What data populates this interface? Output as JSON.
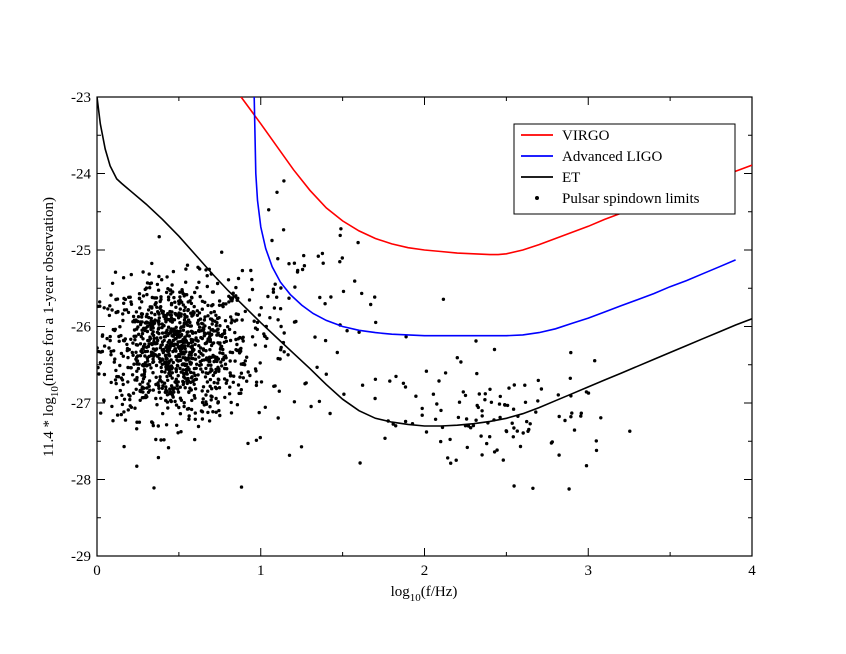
{
  "chart_data": {
    "type": "line+scatter",
    "title": "",
    "xlabel": "log10(f/Hz)",
    "xlabel_parts": {
      "pre": "log",
      "sub": "10",
      "post": "(f/Hz)"
    },
    "ylabel": "11.4 * log10(noise for a 1-year observation)",
    "ylabel_parts": {
      "pre": "11.4 * log",
      "sub": "10",
      "post": "(noise for a 1-year observation)"
    },
    "xlim": [
      0,
      4
    ],
    "ylim": [
      -29,
      -23
    ],
    "xticks": [
      0,
      1,
      2,
      3,
      4
    ],
    "xtick_labels": [
      "0",
      "1",
      "2",
      "3",
      "4"
    ],
    "yticks": [
      -29,
      -28,
      -27,
      -26,
      -25,
      -24,
      -23
    ],
    "ytick_labels": [
      "-29",
      "-28",
      "-27",
      "-26",
      "-25",
      "-24",
      "-23"
    ],
    "legend_position": "top-right",
    "series": [
      {
        "name": "VIRGO",
        "color": "#ff0000",
        "kind": "line",
        "x": [
          0.88,
          1.0,
          1.1,
          1.2,
          1.3,
          1.4,
          1.5,
          1.6,
          1.7,
          1.8,
          1.9,
          2.0,
          2.1,
          2.2,
          2.3,
          2.4,
          2.45,
          2.5,
          2.6,
          2.7,
          2.8,
          2.9,
          3.0,
          3.1,
          3.2,
          3.3,
          3.4,
          3.5,
          3.6,
          3.7,
          3.8,
          3.9,
          4.0
        ],
        "y": [
          -23.0,
          -23.35,
          -23.65,
          -23.95,
          -24.22,
          -24.45,
          -24.62,
          -24.75,
          -24.85,
          -24.92,
          -24.97,
          -25.0,
          -25.02,
          -25.04,
          -25.05,
          -25.06,
          -25.06,
          -25.05,
          -25.0,
          -24.93,
          -24.85,
          -24.77,
          -24.69,
          -24.6,
          -24.52,
          -24.44,
          -24.36,
          -24.28,
          -24.2,
          -24.12,
          -24.04,
          -23.97,
          -23.89
        ]
      },
      {
        "name": "Advanced LIGO",
        "color": "#0000ff",
        "kind": "line",
        "x": [
          0.96,
          0.97,
          0.98,
          1.0,
          1.03,
          1.07,
          1.12,
          1.18,
          1.25,
          1.32,
          1.4,
          1.5,
          1.6,
          1.7,
          1.8,
          1.9,
          2.0,
          2.1,
          2.2,
          2.3,
          2.4,
          2.5,
          2.6,
          2.7,
          2.8,
          2.9,
          3.0,
          3.1,
          3.2,
          3.3,
          3.4,
          3.5,
          3.6,
          3.7,
          3.8,
          3.9
        ],
        "y": [
          -23.0,
          -24.0,
          -24.35,
          -24.7,
          -24.98,
          -25.22,
          -25.42,
          -25.58,
          -25.72,
          -25.83,
          -25.92,
          -26.0,
          -26.05,
          -26.08,
          -26.1,
          -26.11,
          -26.12,
          -26.12,
          -26.12,
          -26.12,
          -26.12,
          -26.12,
          -26.11,
          -26.08,
          -26.03,
          -25.96,
          -25.89,
          -25.81,
          -25.73,
          -25.65,
          -25.57,
          -25.48,
          -25.4,
          -25.31,
          -25.22,
          -25.13
        ]
      },
      {
        "name": "ET",
        "color": "#000000",
        "kind": "line",
        "x": [
          0.0,
          0.02,
          0.05,
          0.08,
          0.12,
          0.15,
          0.2,
          0.3,
          0.4,
          0.5,
          0.6,
          0.7,
          0.8,
          0.9,
          1.0,
          1.1,
          1.2,
          1.3,
          1.4,
          1.5,
          1.6,
          1.7,
          1.8,
          1.9,
          2.0,
          2.1,
          2.2,
          2.3,
          2.4,
          2.5,
          2.6,
          2.7,
          2.8,
          2.9,
          3.0,
          3.1,
          3.2,
          3.3,
          3.4,
          3.5,
          3.6,
          3.7,
          3.8,
          3.9,
          4.0
        ],
        "y": [
          -23.0,
          -23.35,
          -23.68,
          -23.9,
          -24.07,
          -24.13,
          -24.22,
          -24.4,
          -24.6,
          -24.82,
          -25.06,
          -25.3,
          -25.53,
          -25.74,
          -25.95,
          -26.15,
          -26.35,
          -26.55,
          -26.76,
          -26.95,
          -27.1,
          -27.2,
          -27.25,
          -27.28,
          -27.3,
          -27.3,
          -27.29,
          -27.27,
          -27.24,
          -27.2,
          -27.14,
          -27.06,
          -26.97,
          -26.88,
          -26.79,
          -26.7,
          -26.61,
          -26.52,
          -26.43,
          -26.34,
          -26.25,
          -26.16,
          -26.07,
          -25.98,
          -25.9
        ]
      },
      {
        "name": "Pulsar spindown limits",
        "color": "#000000",
        "kind": "scatter",
        "clusters": [
          {
            "x_mean": 0.48,
            "x_sd": 0.23,
            "y_mean": -26.3,
            "y_sd": 0.45,
            "count": 1100
          },
          {
            "x_mean": 1.2,
            "x_sd": 0.25,
            "y_mean": -25.9,
            "y_sd": 0.75,
            "count": 90
          },
          {
            "x_mean": 2.55,
            "x_sd": 0.3,
            "y_mean": -27.25,
            "y_sd": 0.35,
            "count": 95
          },
          {
            "x_mean": 1.9,
            "x_sd": 0.25,
            "y_mean": -27.1,
            "y_sd": 0.5,
            "count": 25
          }
        ]
      }
    ]
  }
}
